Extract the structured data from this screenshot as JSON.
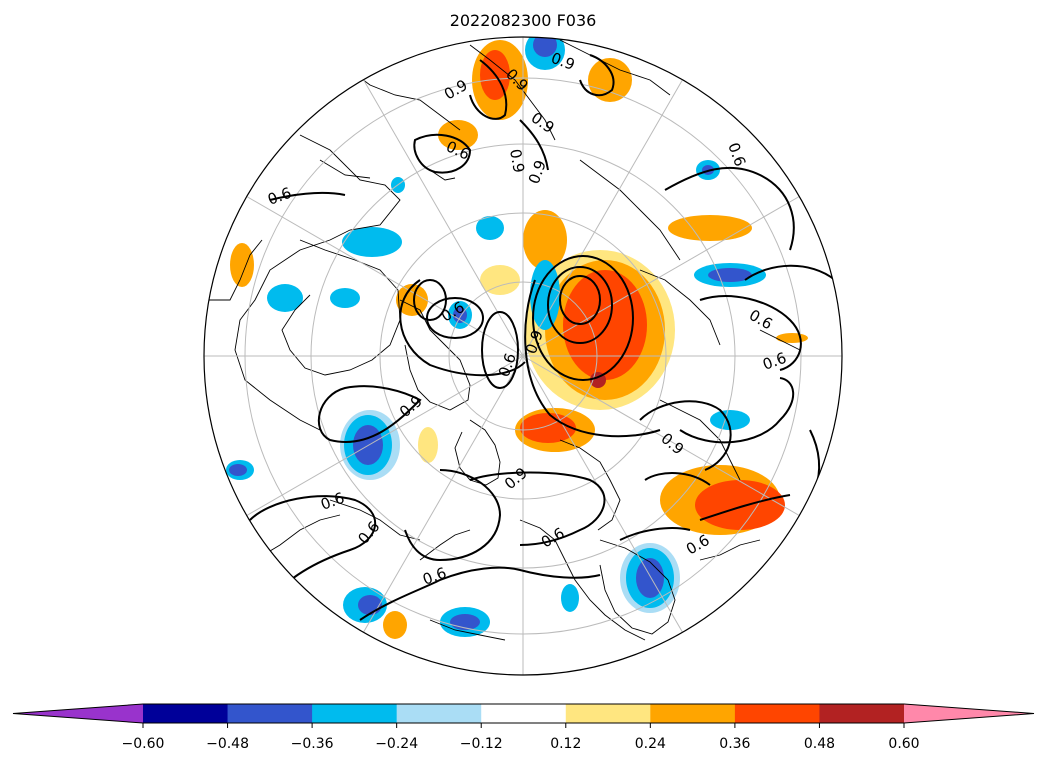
{
  "title": "2022082300 F036",
  "colorbar": {
    "ticks": [
      "−0.60",
      "−0.48",
      "−0.36",
      "−0.24",
      "−0.12",
      "0.12",
      "0.24",
      "0.36",
      "0.48",
      "0.60"
    ],
    "colors": [
      "#9933cc",
      "#000099",
      "#3355cc",
      "#00bbee",
      "#aaddf5",
      "#ffffff",
      "#ffe680",
      "#ffa500",
      "#ff4500",
      "#b22222",
      "#ff88aa"
    ]
  },
  "contour_labels": [
    "0.9",
    "0.6"
  ],
  "map": {
    "projection": "north-polar-stereographic",
    "fill_colors": {
      "pos_light": "#ffe680",
      "pos_mid": "#ffa500",
      "pos_strong": "#ff4500",
      "pos_max": "#b22222",
      "neg_light": "#aaddf5",
      "neg_mid": "#00bbee",
      "neg_strong": "#3355cc"
    }
  }
}
